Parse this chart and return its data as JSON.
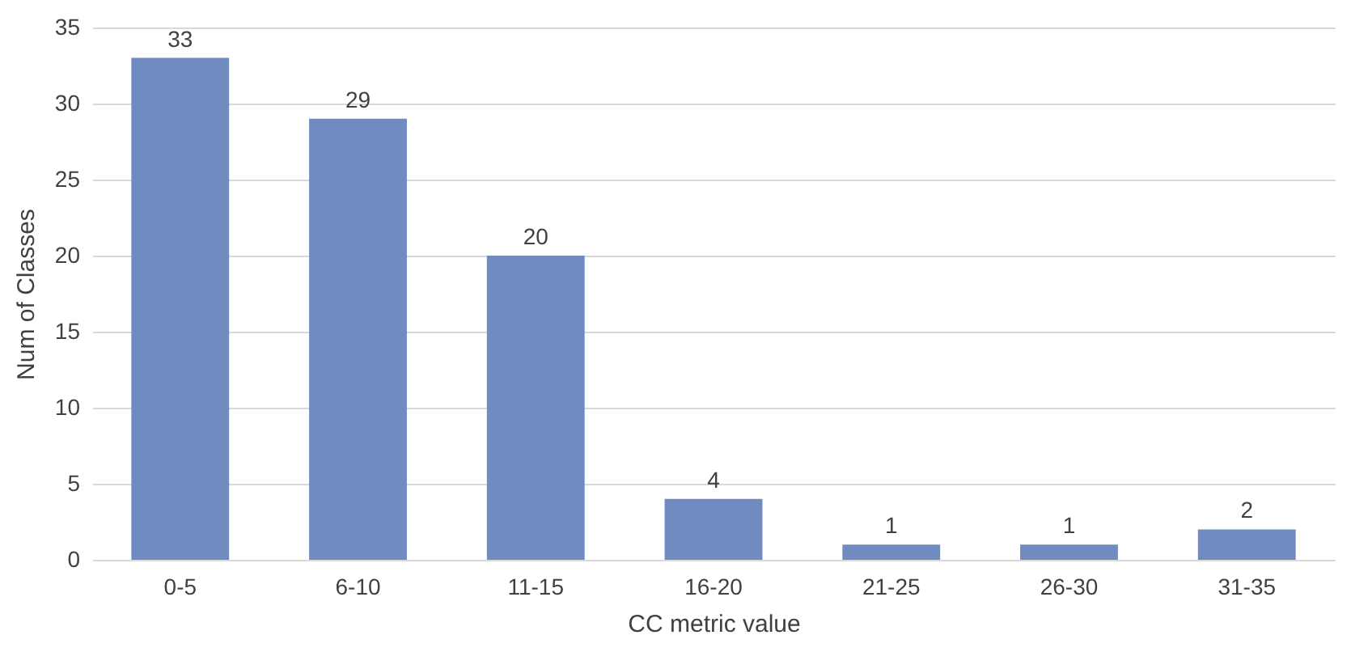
{
  "chart_data": {
    "type": "bar",
    "xlabel": "CC metric value",
    "ylabel": "Num of Classes",
    "categories": [
      "0-5",
      "6-10",
      "11-15",
      "16-20",
      "21-25",
      "26-30",
      "31-35"
    ],
    "values": [
      33,
      29,
      20,
      4,
      1,
      1,
      2
    ],
    "color": "#6f8bbf",
    "ylim": [
      0,
      35
    ],
    "yticks": [
      0,
      5,
      10,
      15,
      20,
      25,
      30,
      35
    ],
    "grid": "y",
    "data_labels": true
  }
}
